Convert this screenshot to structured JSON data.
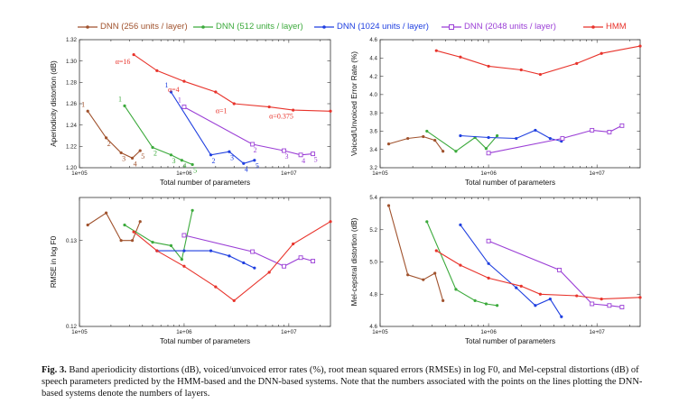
{
  "legend": [
    {
      "name": "DNN (256 units / layer)",
      "color": "#a0522d",
      "marker": "line"
    },
    {
      "name": "DNN (512 units / layer)",
      "color": "#3caa3c",
      "marker": "line"
    },
    {
      "name": "DNN (1024 units / layer)",
      "color": "#1f3fe0",
      "marker": "line"
    },
    {
      "name": "DNN (2048 units / layer)",
      "color": "#9b3fd6",
      "marker": "square"
    },
    {
      "name": "HMM",
      "color": "#e8332b",
      "marker": "line"
    }
  ],
  "caption": {
    "label": "Fig. 3.",
    "text": "Band aperiodicity distortions (dB), voiced/unvoiced error rates (%), root mean squared errors (RMSEs) in log F0, and Mel-cepstral distortions (dB) of speech parameters predicted by the HMM-based and the DNN-based systems. Note that the numbers associated with the points on the lines plotting the DNN-based systems denote the numbers of layers."
  },
  "chart_data": [
    {
      "type": "line",
      "xlabel": "Total number of parameters",
      "ylabel": "Aperiodicity distortion (dB)",
      "xscale": "log",
      "xlim": [
        100000,
        25000000
      ],
      "ylim": [
        1.2,
        1.32
      ],
      "xticks": [
        {
          "v": 100000,
          "label": "1e+05"
        },
        {
          "v": 1000000,
          "label": "1e+06"
        },
        {
          "v": 10000000,
          "label": "1e+07"
        }
      ],
      "yticks": [
        {
          "v": 1.2,
          "label": "1.20"
        },
        {
          "v": 1.22,
          "label": "1.22"
        },
        {
          "v": 1.24,
          "label": "1.24"
        },
        {
          "v": 1.26,
          "label": "1.26"
        },
        {
          "v": 1.28,
          "label": "1.28"
        },
        {
          "v": 1.3,
          "label": "1.30"
        },
        {
          "v": 1.32,
          "label": "1.32"
        }
      ],
      "series": [
        {
          "name": "DNN (256 units / layer)",
          "color": "#a0522d",
          "x": [
            120000,
            180000,
            250000,
            320000,
            380000
          ],
          "y": [
            1.253,
            1.228,
            1.214,
            1.209,
            1.216
          ],
          "labels": [
            "1",
            "2",
            "3",
            "4",
            "5"
          ]
        },
        {
          "name": "DNN (512 units / layer)",
          "color": "#3caa3c",
          "x": [
            270000,
            500000,
            750000,
            950000,
            1200000
          ],
          "y": [
            1.258,
            1.219,
            1.212,
            1.207,
            1.203
          ],
          "labels": [
            "1",
            "2",
            "3",
            "4",
            "5"
          ]
        },
        {
          "name": "DNN (1024 units / layer)",
          "color": "#1f3fe0",
          "x": [
            750000,
            1800000,
            2700000,
            3700000,
            4700000
          ],
          "y": [
            1.271,
            1.212,
            1.215,
            1.204,
            1.207
          ],
          "labels": [
            "1",
            "2",
            "3",
            "4",
            "5"
          ]
        },
        {
          "name": "DNN (2048 units / layer)",
          "color": "#9b3fd6",
          "marker": "square",
          "x": [
            1000000,
            4500000,
            9000000,
            13000000,
            17000000
          ],
          "y": [
            1.257,
            1.222,
            1.216,
            1.212,
            1.213
          ],
          "labels": [
            "1",
            "2",
            "3",
            "4",
            "5"
          ]
        },
        {
          "name": "HMM",
          "color": "#e8332b",
          "x": [
            330000,
            550000,
            1000000,
            2000000,
            3000000,
            6500000,
            11000000,
            25000000
          ],
          "y": [
            1.306,
            1.291,
            1.281,
            1.271,
            1.26,
            1.257,
            1.254,
            1.253
          ]
        }
      ],
      "annotations": [
        {
          "text": "α=16",
          "x": 220000,
          "y": 1.297
        },
        {
          "text": "α=4",
          "x": 700000,
          "y": 1.271
        },
        {
          "text": "α=1",
          "x": 2000000,
          "y": 1.251
        },
        {
          "text": "α=0.375",
          "x": 6500000,
          "y": 1.246
        }
      ]
    },
    {
      "type": "line",
      "xlabel": "Total number of parameters",
      "ylabel": "Voiced/Unvoiced Error Rate (%)",
      "xscale": "log",
      "xlim": [
        100000,
        25000000
      ],
      "ylim": [
        3.2,
        4.6
      ],
      "xticks": [
        {
          "v": 100000,
          "label": "1e+05"
        },
        {
          "v": 1000000,
          "label": "1e+06"
        },
        {
          "v": 10000000,
          "label": "1e+07"
        }
      ],
      "yticks": [
        {
          "v": 3.2,
          "label": "3.2"
        },
        {
          "v": 3.4,
          "label": "3.4"
        },
        {
          "v": 3.6,
          "label": "3.6"
        },
        {
          "v": 3.8,
          "label": "3.8"
        },
        {
          "v": 4.0,
          "label": "4.0"
        },
        {
          "v": 4.2,
          "label": "4.2"
        },
        {
          "v": 4.4,
          "label": "4.4"
        },
        {
          "v": 4.6,
          "label": "4.6"
        }
      ],
      "series": [
        {
          "name": "DNN (256 units / layer)",
          "color": "#a0522d",
          "x": [
            120000,
            180000,
            250000,
            320000,
            380000
          ],
          "y": [
            3.46,
            3.52,
            3.54,
            3.5,
            3.38
          ]
        },
        {
          "name": "DNN (512 units / layer)",
          "color": "#3caa3c",
          "x": [
            270000,
            500000,
            750000,
            950000,
            1200000
          ],
          "y": [
            3.6,
            3.38,
            3.53,
            3.41,
            3.55
          ]
        },
        {
          "name": "DNN (1024 units / layer)",
          "color": "#1f3fe0",
          "x": [
            550000,
            1000000,
            1800000,
            2700000,
            3700000,
            4700000
          ],
          "y": [
            3.55,
            3.53,
            3.52,
            3.61,
            3.52,
            3.49
          ]
        },
        {
          "name": "DNN (2048 units / layer)",
          "color": "#9b3fd6",
          "marker": "square",
          "x": [
            1000000,
            4800000,
            9000000,
            13000000,
            17000000
          ],
          "y": [
            3.36,
            3.52,
            3.61,
            3.59,
            3.66
          ]
        },
        {
          "name": "HMM",
          "color": "#e8332b",
          "x": [
            330000,
            550000,
            1000000,
            2000000,
            3000000,
            6500000,
            11000000,
            25000000
          ],
          "y": [
            4.48,
            4.41,
            4.31,
            4.27,
            4.22,
            4.34,
            4.45,
            4.53
          ]
        }
      ]
    },
    {
      "type": "line",
      "xlabel": "Total number of parameters",
      "ylabel": "RMSE in log F0",
      "xscale": "log",
      "xlim": [
        100000,
        25000000
      ],
      "ylim": [
        0.12,
        0.135
      ],
      "xticks": [
        {
          "v": 100000,
          "label": "1e+05"
        },
        {
          "v": 1000000,
          "label": "1e+06"
        },
        {
          "v": 10000000,
          "label": "1e+07"
        }
      ],
      "yticks": [
        {
          "v": 0.12,
          "label": "0.12"
        },
        {
          "v": 0.13,
          "label": "0.13"
        }
      ],
      "series": [
        {
          "name": "DNN (256 units / layer)",
          "color": "#a0522d",
          "x": [
            120000,
            180000,
            250000,
            320000,
            380000
          ],
          "y": [
            0.1318,
            0.1332,
            0.13,
            0.13,
            0.1322
          ]
        },
        {
          "name": "DNN (512 units / layer)",
          "color": "#3caa3c",
          "x": [
            270000,
            500000,
            750000,
            950000,
            1200000
          ],
          "y": [
            0.1318,
            0.1298,
            0.1294,
            0.1278,
            0.1335
          ]
        },
        {
          "name": "DNN (1024 units / layer)",
          "color": "#1f3fe0",
          "x": [
            550000,
            1000000,
            1800000,
            2700000,
            3700000,
            4700000
          ],
          "y": [
            0.1288,
            0.1288,
            0.1288,
            0.1282,
            0.1274,
            0.1268
          ]
        },
        {
          "name": "DNN (2048 units / layer)",
          "color": "#9b3fd6",
          "marker": "square",
          "x": [
            1000000,
            4500000,
            9000000,
            13000000,
            17000000
          ],
          "y": [
            0.1306,
            0.1287,
            0.127,
            0.128,
            0.1276
          ]
        },
        {
          "name": "HMM",
          "color": "#e8332b",
          "x": [
            330000,
            550000,
            1000000,
            2000000,
            3000000,
            6500000,
            11000000,
            25000000
          ],
          "y": [
            0.131,
            0.1288,
            0.127,
            0.1246,
            0.123,
            0.1263,
            0.1296,
            0.1322
          ]
        }
      ]
    },
    {
      "type": "line",
      "xlabel": "Total number of parameters",
      "ylabel": "Mel-cepstral distortion (dB)",
      "xscale": "log",
      "xlim": [
        100000,
        25000000
      ],
      "ylim": [
        4.6,
        5.4
      ],
      "xticks": [
        {
          "v": 100000,
          "label": "1e+05"
        },
        {
          "v": 1000000,
          "label": "1e+06"
        },
        {
          "v": 10000000,
          "label": "1e+07"
        }
      ],
      "yticks": [
        {
          "v": 4.6,
          "label": "4.6"
        },
        {
          "v": 4.8,
          "label": "4.8"
        },
        {
          "v": 5.0,
          "label": "5.0"
        },
        {
          "v": 5.2,
          "label": "5.2"
        },
        {
          "v": 5.4,
          "label": "5.4"
        }
      ],
      "series": [
        {
          "name": "DNN (256 units / layer)",
          "color": "#a0522d",
          "x": [
            120000,
            180000,
            250000,
            320000,
            380000
          ],
          "y": [
            5.35,
            4.92,
            4.89,
            4.93,
            4.76
          ]
        },
        {
          "name": "DNN (512 units / layer)",
          "color": "#3caa3c",
          "x": [
            270000,
            500000,
            750000,
            950000,
            1200000
          ],
          "y": [
            5.25,
            4.83,
            4.76,
            4.74,
            4.73
          ]
        },
        {
          "name": "DNN (1024 units / layer)",
          "color": "#1f3fe0",
          "x": [
            550000,
            1000000,
            1800000,
            2700000,
            3700000,
            4700000
          ],
          "y": [
            5.23,
            4.99,
            4.84,
            4.73,
            4.77,
            4.66
          ]
        },
        {
          "name": "DNN (2048 units / layer)",
          "color": "#9b3fd6",
          "marker": "square",
          "x": [
            1000000,
            4500000,
            9000000,
            13000000,
            17000000
          ],
          "y": [
            5.13,
            4.95,
            4.74,
            4.73,
            4.72
          ]
        },
        {
          "name": "HMM",
          "color": "#e8332b",
          "x": [
            330000,
            550000,
            1000000,
            2000000,
            3000000,
            6500000,
            11000000,
            25000000
          ],
          "y": [
            5.07,
            4.98,
            4.9,
            4.85,
            4.8,
            4.79,
            4.77,
            4.78
          ]
        }
      ]
    }
  ]
}
